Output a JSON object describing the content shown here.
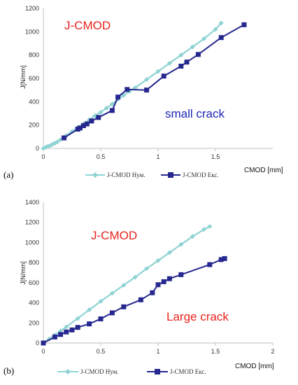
{
  "chart_data": [
    {
      "type": "line",
      "panel_label": "(a)",
      "annotation_title": "J-CMOD",
      "annotation_note": "small crack",
      "xlabel": "CMOD [mm]",
      "ylabel": "J[N/mm]",
      "xlim": [
        0,
        2
      ],
      "ylim": [
        0,
        1200
      ],
      "xticks": [
        "0",
        "0.5",
        "1",
        "1.5"
      ],
      "yticks": [
        "0",
        "200",
        "400",
        "600",
        "800",
        "1000",
        "1200"
      ],
      "grid": false,
      "legend_position": "bottom",
      "series": [
        {
          "name": "J-CMOD Нум.",
          "color": "#8fd3d3",
          "marker": "diamond",
          "x": [
            0,
            0.02,
            0.04,
            0.06,
            0.08,
            0.1,
            0.12,
            0.15,
            0.2,
            0.25,
            0.3,
            0.35,
            0.4,
            0.45,
            0.5,
            0.55,
            0.6,
            0.65,
            0.7,
            0.75,
            0.8,
            0.9,
            1.0,
            1.1,
            1.2,
            1.3,
            1.4,
            1.5,
            1.55
          ],
          "y": [
            0,
            10,
            18,
            25,
            35,
            45,
            55,
            75,
            110,
            145,
            180,
            210,
            245,
            280,
            310,
            345,
            380,
            420,
            455,
            490,
            520,
            590,
            660,
            730,
            800,
            870,
            940,
            1020,
            1075
          ]
        },
        {
          "name": "J-CMOD Екс.",
          "color": "#26288f",
          "marker": "square",
          "x": [
            0.18,
            0.3,
            0.32,
            0.35,
            0.38,
            0.42,
            0.48,
            0.6,
            0.65,
            0.73,
            0.9,
            1.05,
            1.2,
            1.25,
            1.35,
            1.55,
            1.75
          ],
          "y": [
            90,
            165,
            175,
            195,
            210,
            235,
            265,
            325,
            440,
            505,
            500,
            620,
            705,
            740,
            805,
            950,
            1060
          ]
        }
      ]
    },
    {
      "type": "line",
      "panel_label": "(b)",
      "annotation_title": "J-CMOD",
      "annotation_note": "Large crack",
      "xlabel": "CMOD [mm]",
      "ylabel": "J[N/mm]",
      "xlim": [
        0,
        2
      ],
      "ylim": [
        0,
        1400
      ],
      "xticks": [
        "0",
        "0.5",
        "1",
        "1.5",
        "2"
      ],
      "yticks": [
        "0",
        "200",
        "400",
        "600",
        "800",
        "1000",
        "1200",
        "1400"
      ],
      "grid": false,
      "legend_position": "bottom",
      "series": [
        {
          "name": "J-CMOD Нум.",
          "color": "#8fd3d3",
          "marker": "diamond",
          "x": [
            0,
            0.05,
            0.1,
            0.15,
            0.2,
            0.3,
            0.4,
            0.5,
            0.6,
            0.7,
            0.8,
            0.9,
            1.0,
            1.1,
            1.2,
            1.3,
            1.4,
            1.45
          ],
          "y": [
            0,
            40,
            80,
            120,
            160,
            245,
            330,
            415,
            495,
            575,
            655,
            740,
            820,
            900,
            980,
            1060,
            1130,
            1160
          ]
        },
        {
          "name": "J-CMOD Екс.",
          "color": "#26288f",
          "marker": "square",
          "x": [
            0,
            0.1,
            0.15,
            0.2,
            0.25,
            0.3,
            0.4,
            0.5,
            0.6,
            0.7,
            0.85,
            0.95,
            1.0,
            1.05,
            1.1,
            1.2,
            1.45,
            1.55,
            1.58
          ],
          "y": [
            0,
            60,
            85,
            110,
            130,
            155,
            190,
            240,
            300,
            360,
            430,
            500,
            580,
            610,
            640,
            680,
            780,
            830,
            840
          ]
        }
      ]
    }
  ]
}
